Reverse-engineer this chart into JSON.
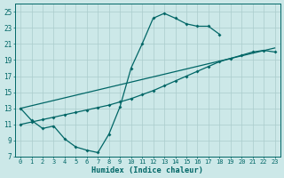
{
  "xlabel": "Humidex (Indice chaleur)",
  "bg_color": "#cce8e8",
  "grid_color": "#aacccc",
  "line_color": "#006666",
  "xlim": [
    -0.5,
    23.5
  ],
  "ylim": [
    7,
    26
  ],
  "xticks": [
    0,
    1,
    2,
    3,
    4,
    5,
    6,
    7,
    8,
    9,
    10,
    11,
    12,
    13,
    14,
    15,
    16,
    17,
    18,
    19,
    20,
    21,
    22,
    23
  ],
  "yticks": [
    7,
    9,
    11,
    13,
    15,
    17,
    19,
    21,
    23,
    25
  ],
  "line1_x": [
    0,
    1,
    2,
    3,
    4,
    5,
    6,
    7,
    8,
    9,
    10,
    11,
    12,
    13,
    14,
    15,
    16,
    17,
    18
  ],
  "line1_y": [
    13.0,
    11.5,
    10.5,
    10.8,
    9.2,
    8.2,
    7.8,
    7.5,
    9.8,
    13.2,
    18.0,
    21.0,
    24.2,
    24.8,
    24.2,
    23.5,
    23.2,
    23.2,
    22.2
  ],
  "line2_x": [
    0,
    23
  ],
  "line2_y": [
    13.0,
    20.5
  ],
  "line3_x": [
    0,
    1,
    2,
    3,
    4,
    5,
    6,
    7,
    8,
    9,
    10,
    11,
    12,
    13,
    14,
    15,
    16,
    17,
    18,
    19,
    20,
    21,
    22,
    23
  ],
  "line3_y": [
    11.0,
    11.3,
    11.6,
    11.9,
    12.2,
    12.5,
    12.8,
    13.1,
    13.4,
    13.8,
    14.2,
    14.7,
    15.2,
    15.8,
    16.4,
    17.0,
    17.6,
    18.2,
    18.8,
    19.2,
    19.6,
    20.0,
    20.2,
    20.0
  ]
}
